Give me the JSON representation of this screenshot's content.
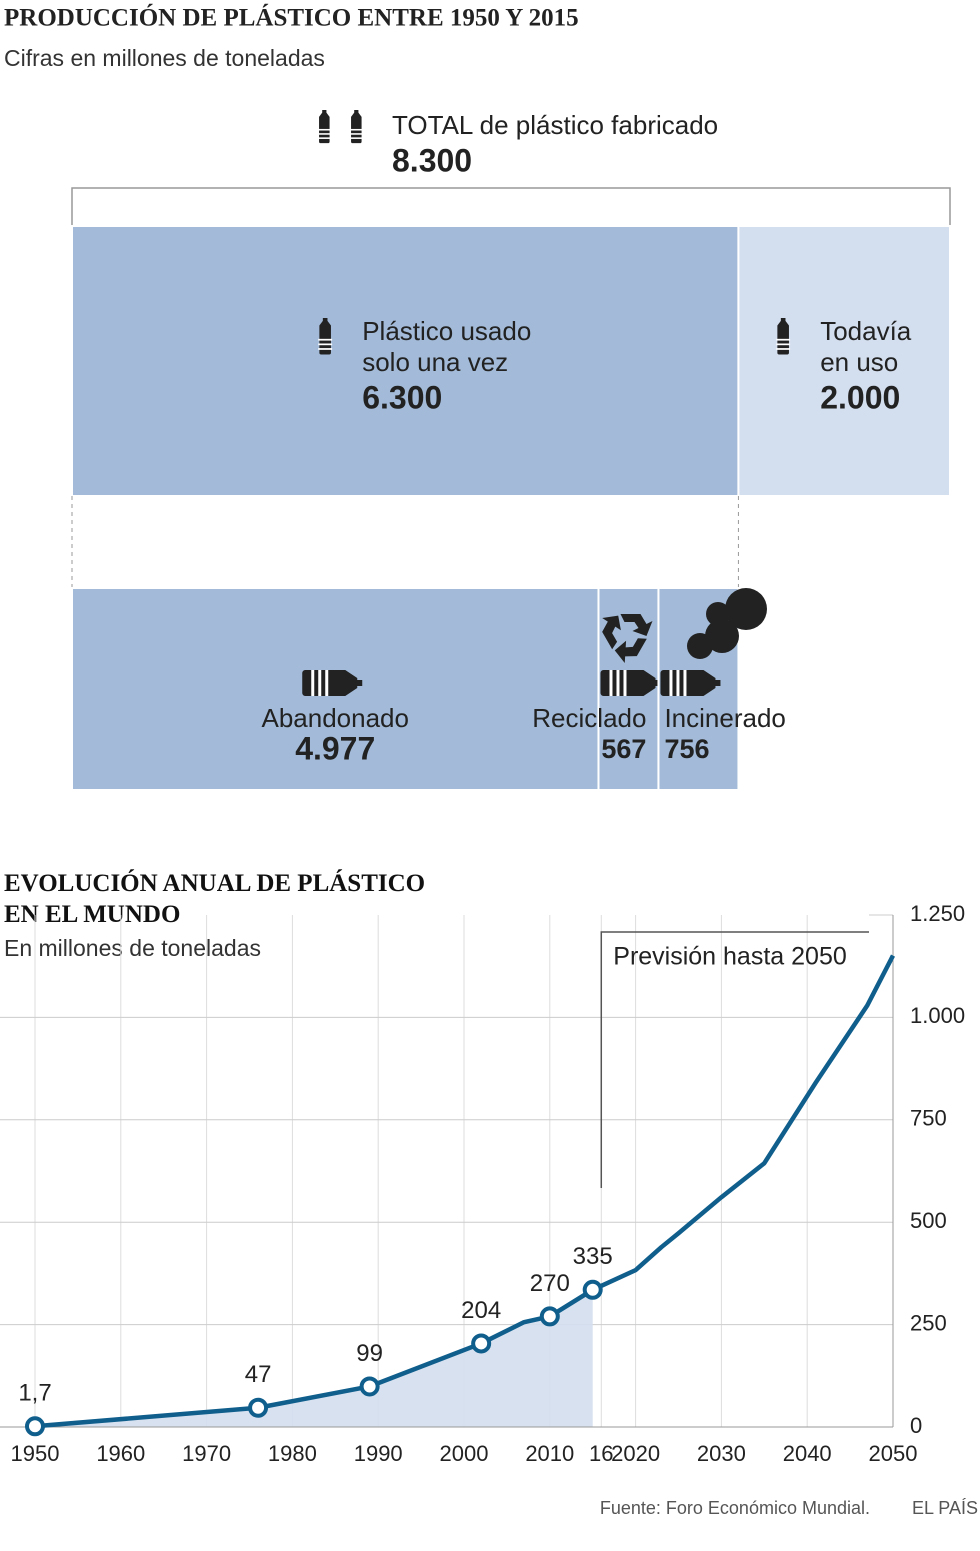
{
  "chart_data": [
    {
      "type": "breakdown",
      "title": "PRODUCCIÓN DE PLÁSTICO ENTRE 1950 Y 2015",
      "subtitle": "Cifras en millones de toneladas",
      "total": {
        "name": "TOTAL de plástico fabricado",
        "value": 8300,
        "value_label": "8.300"
      },
      "categories": [
        "Plástico usado solo una vez",
        "Todavía en uso"
      ],
      "values": [
        6300,
        2000
      ],
      "value_labels": [
        "6.300",
        "2.000"
      ],
      "colors": [
        "#a3bbd8",
        "#d3deee"
      ],
      "breakdown": {
        "categories": [
          "Abandonado",
          "Reciclado",
          "Incinerado"
        ],
        "values": [
          4977,
          567,
          756
        ],
        "value_labels": [
          "4.977",
          "567",
          "756"
        ],
        "color": "#a3bbd8"
      }
    },
    {
      "type": "line",
      "title": "EVOLUCIÓN ANUAL DE PLÁSTICO EN EL MUNDO",
      "subtitle": "En millones de toneladas",
      "annotation": {
        "text": "Previsión hasta 2050",
        "x": 2016
      },
      "x": [
        1950,
        1976,
        1989,
        2002,
        2007,
        2010,
        2015,
        2020,
        2023,
        2025,
        2030,
        2035,
        2041,
        2047,
        2050
      ],
      "values": [
        1.7,
        47,
        99,
        204,
        256,
        270,
        335,
        383,
        439,
        473,
        561,
        644,
        841,
        1029,
        1151
      ],
      "value_labels": [
        "1,7",
        "47",
        "99",
        "204",
        null,
        "270",
        "335",
        null,
        null,
        null,
        null,
        null,
        null,
        null,
        null
      ],
      "color": "#0f5e8c",
      "area_color": "#d3deee",
      "xlim": [
        1950,
        2050
      ],
      "xticks": [
        1950,
        1960,
        1970,
        1980,
        1990,
        2000,
        2010,
        {
          "value": 2016,
          "label": "16"
        },
        2020,
        2030,
        2040,
        2050
      ],
      "ylim": [
        0,
        1250
      ],
      "yticks": [
        0,
        250,
        500,
        750,
        {
          "value": 1000,
          "label": "1.000"
        },
        {
          "value": 1250,
          "label": "1.250"
        }
      ],
      "grid": true
    }
  ],
  "footer": {
    "source": "Fuente: Foro Económico Mundial.",
    "brand": "EL PAÍS"
  }
}
